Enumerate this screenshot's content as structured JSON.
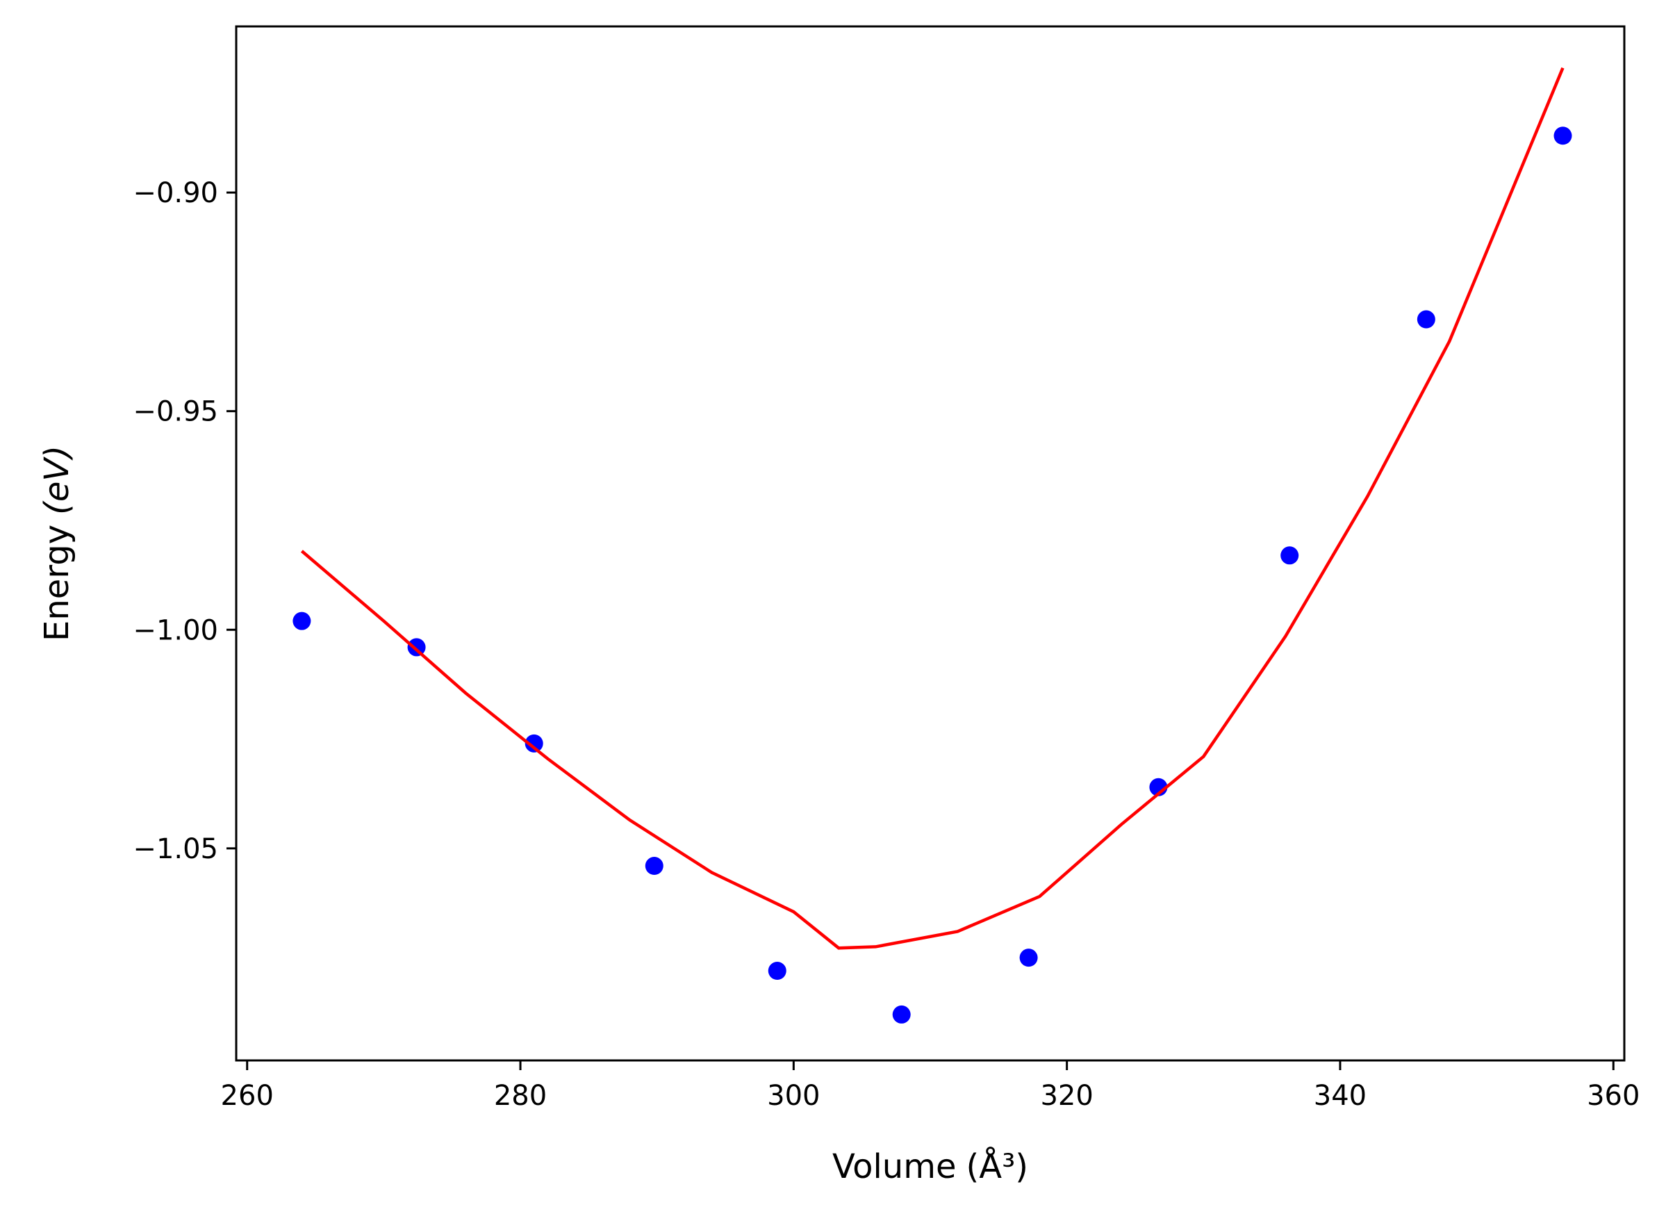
{
  "chart_data": {
    "type": "scatter",
    "title": "",
    "xlabel": "Volume",
    "xlabel_unit": "(Å³)",
    "ylabel": "Energy",
    "ylabel_unit": "(eV)",
    "xlim": [
      259.2,
      360.8
    ],
    "ylim": [
      -1.0985,
      -0.862
    ],
    "x_ticks": [
      260,
      280,
      300,
      320,
      340,
      360
    ],
    "x_tick_labels": [
      "260",
      "280",
      "300",
      "320",
      "340",
      "360"
    ],
    "y_ticks": [
      -1.05,
      -1.0,
      -0.95,
      -0.9
    ],
    "y_tick_labels": [
      "−1.05",
      "−1.00",
      "−0.95",
      "−0.90"
    ],
    "grid": false,
    "series": [
      {
        "type": "scatter",
        "color": "#0000ff",
        "x": [
          264.0,
          272.4,
          281.0,
          289.8,
          298.8,
          307.9,
          317.2,
          326.7,
          336.3,
          346.3,
          356.3
        ],
        "y": [
          -0.998,
          -1.004,
          -1.026,
          -1.054,
          -1.078,
          -1.088,
          -1.075,
          -1.036,
          -0.983,
          -0.929,
          -0.887
        ]
      },
      {
        "type": "line",
        "color": "#ff0000",
        "x": [
          264,
          270,
          276,
          282,
          288,
          294,
          300,
          303.3,
          306,
          312,
          318,
          324,
          330,
          336,
          342,
          348,
          356.3
        ],
        "y": [
          -0.982,
          -0.998,
          -1.0145,
          -1.0295,
          -1.0435,
          -1.0555,
          -1.0645,
          -1.0728,
          -1.0725,
          -1.069,
          -1.061,
          -1.0445,
          -1.029,
          -1.0015,
          -0.9695,
          -0.934,
          -0.8715
        ]
      }
    ],
    "colors": {
      "axis": "#000000",
      "background": "#ffffff"
    }
  }
}
